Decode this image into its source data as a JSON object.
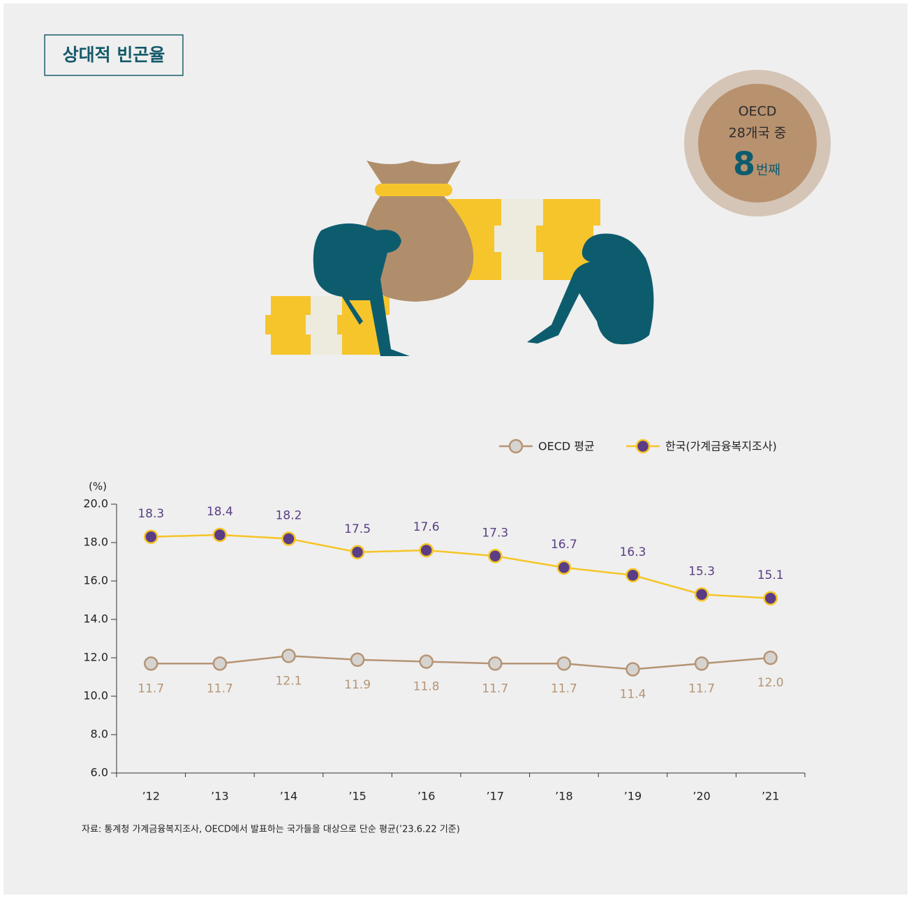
{
  "header": {
    "title": "상대적 빈곤율"
  },
  "badge": {
    "line1": "OECD",
    "line2": "28개국 중",
    "rank": "8",
    "suffix": "번째"
  },
  "chart_data": {
    "type": "line",
    "unit_label": "(%)",
    "categories": [
      "’12",
      "’13",
      "’14",
      "’15",
      "’16",
      "’17",
      "’18",
      "’19",
      "’20",
      "’21"
    ],
    "series": [
      {
        "name": "OECD 평균",
        "color": "#b59474",
        "marker_fill": "#d6d4d1",
        "values": [
          11.7,
          11.7,
          12.1,
          11.9,
          11.8,
          11.7,
          11.7,
          11.4,
          11.7,
          12.0
        ],
        "value_labels": [
          "11.7",
          "11.7",
          "12.1",
          "11.9",
          "11.8",
          "11.7",
          "11.7",
          "11.4",
          "11.7",
          "12.0"
        ]
      },
      {
        "name": "한국(가계금융복지조사)",
        "color": "#f5c526",
        "marker_fill": "#5a3d85",
        "values": [
          18.3,
          18.4,
          18.2,
          17.5,
          17.6,
          17.3,
          16.7,
          16.3,
          15.3,
          15.1
        ]
      }
    ],
    "ylim": [
      6,
      20
    ],
    "yticks": [
      {
        "value": 6,
        "label": "6.0"
      },
      {
        "value": 8,
        "label": "8.0"
      },
      {
        "value": 10,
        "label": "10.0"
      },
      {
        "value": 12,
        "label": "12.0"
      },
      {
        "value": 14,
        "label": "14.0"
      },
      {
        "value": 16,
        "label": "16.0"
      },
      {
        "value": 18,
        "label": "18.0"
      },
      {
        "value": 20,
        "label": "20.0"
      }
    ],
    "source": "자료: 통계청 가계금융복지조사, OECD에서 발표하는 국가들을 대상으로 단순 평균(’23.6.22 기준)"
  }
}
